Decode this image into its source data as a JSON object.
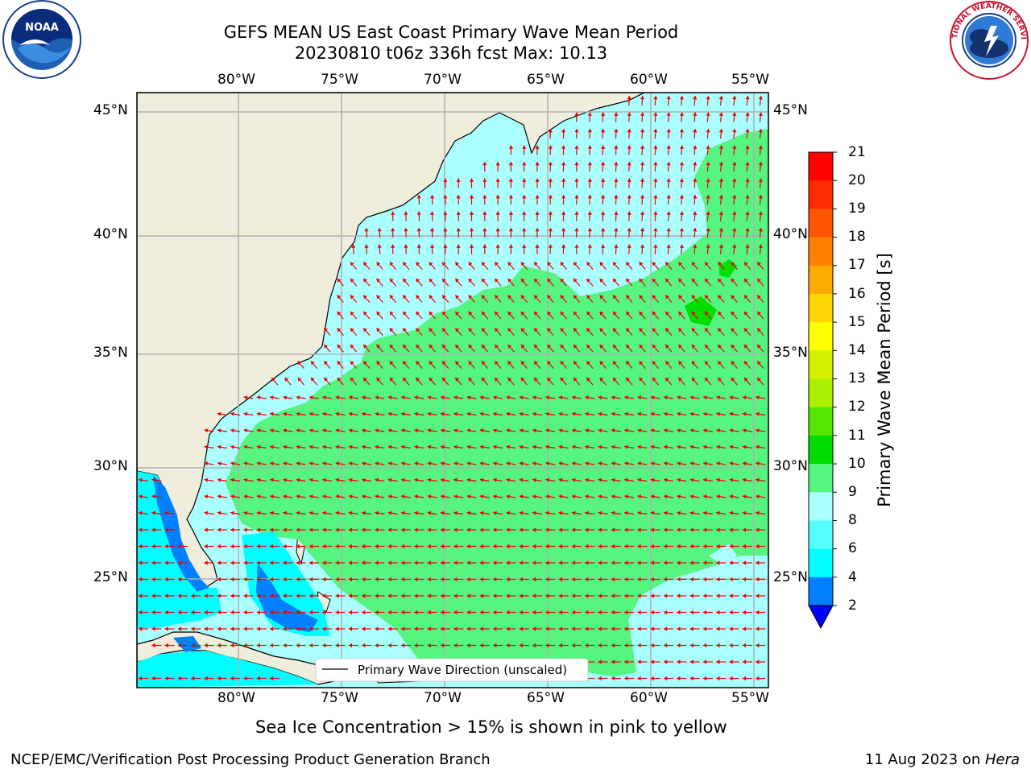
{
  "title": {
    "line1": "GEFS MEAN US East Coast Primary Wave Mean Period",
    "line2": "20230810 t06z 336h fcst   Max: 10.13"
  },
  "logos": {
    "left": {
      "name": "noaa-logo",
      "text": "NOAA",
      "ring_text": "NATIONAL OCEANIC AND ATMOSPHERIC ADMINISTRATION · U.S. DEPARTMENT OF COMMERCE"
    },
    "right": {
      "name": "nws-logo",
      "ring_text": "NATIONAL WEATHER SERVICE"
    }
  },
  "map": {
    "lon_labels": [
      "80°W",
      "75°W",
      "70°W",
      "65°W",
      "60°W",
      "55°W"
    ],
    "lat_labels": [
      "45°N",
      "40°N",
      "35°N",
      "30°N",
      "25°N"
    ],
    "lon_range": [
      -85,
      -54.5
    ],
    "lat_range": [
      20.5,
      46
    ],
    "land_color": "#efeddc",
    "grid_color": "#b0b0b0",
    "arrow_color": "#ee0000",
    "legend_label": "Primary Wave Direction (unscaled)"
  },
  "colorbar": {
    "label": "Primary Wave Mean Period [s]",
    "tick_labels": [
      "21",
      "20",
      "19",
      "18",
      "17",
      "16",
      "15",
      "14",
      "13",
      "12",
      "11",
      "10",
      "9",
      "8",
      "6",
      "4",
      "2"
    ],
    "colors": [
      "#ff0000",
      "#ff2a00",
      "#ff5500",
      "#ff8000",
      "#ffaa00",
      "#ffd400",
      "#ffff00",
      "#d4f200",
      "#aaee00",
      "#55e600",
      "#00dd00",
      "#55f57f",
      "#aaffff",
      "#55ffff",
      "#00ffff",
      "#007fff",
      "#0000ff"
    ],
    "extend_color": "#0000ff"
  },
  "footer": {
    "sea_ice_note": "Sea Ice Concentration > 15% is shown in pink to yellow",
    "credit": "NCEP/EMC/Verification Post Processing Product Generation Branch",
    "date": "11 Aug 2023 on ",
    "machine": "Hera"
  }
}
